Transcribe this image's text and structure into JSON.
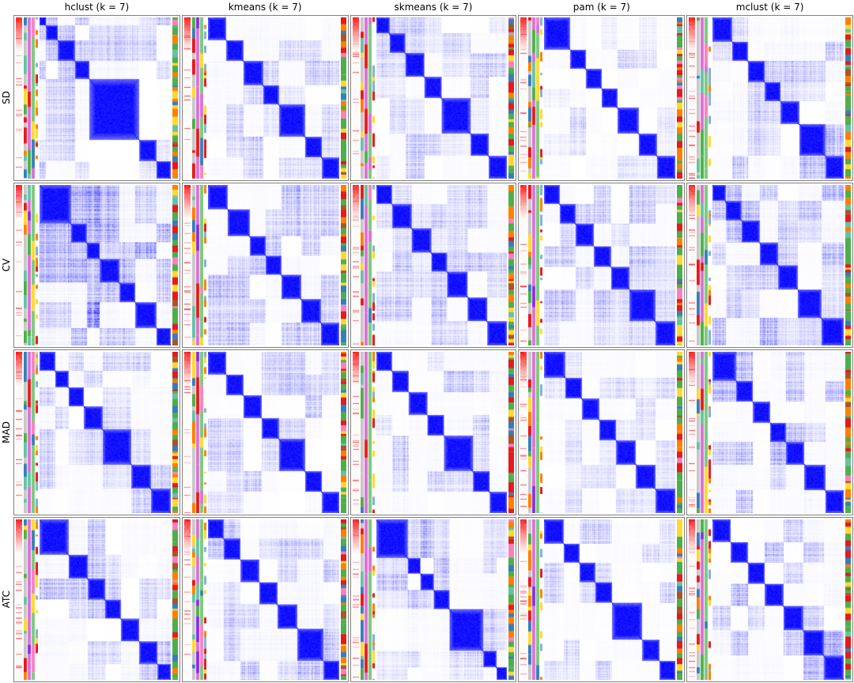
{
  "figure": {
    "k": 7,
    "row_labels": [
      "SD",
      "CV",
      "MAD",
      "ATC"
    ],
    "column_titles": [
      "hclust (k = 7)",
      "kmeans (k = 7)",
      "skmeans (k = 7)",
      "pam (k = 7)",
      "mclust (k = 7)"
    ]
  },
  "colors": {
    "heat_high": "#0000FF",
    "heat_low": "#FFFFFF",
    "score_high": "#FF0000",
    "panel_border": "#7F7F7F",
    "class_strips": [
      {
        "base": "#C8C8C8",
        "base_p": 0.4,
        "palette": [
          "#C8C8C8",
          "#E41A1C",
          "#377EB8",
          "#4DAF4A",
          "#FF7F00",
          "#FFD92F",
          "#66C2A5"
        ],
        "min_seg": 0.015,
        "max_seg": 0.1
      },
      {
        "base": "#DA70D6",
        "base_p": 0.72,
        "palette": [
          "#8A2BE2",
          "#66C2A5",
          "#E41A1C",
          "#4DAF4A"
        ],
        "min_seg": 0.03,
        "max_seg": 0.18
      },
      {
        "base": "#7CC87C",
        "base_p": 0.75,
        "palette": [
          "#DA70D6",
          "#FFD92F",
          "#377EB8",
          "#F781BF"
        ],
        "min_seg": 0.03,
        "max_seg": 0.18
      },
      {
        "base": "#FFFFFF",
        "base_p": 0.55,
        "palette": [
          "#FFD92F",
          "#FF7F00",
          "#E41A1C",
          "#80B1D3"
        ],
        "min_seg": 0.01,
        "max_seg": 0.06
      }
    ],
    "right_strip": {
      "palette": [
        "#4DAF4A",
        "#E41A1C",
        "#FF7F00",
        "#377EB8",
        "#FFD92F",
        "#F781BF",
        "#A65628",
        "#66C2A5"
      ],
      "weights": [
        0.3,
        0.2,
        0.14,
        0.1,
        0.1,
        0.06,
        0.05,
        0.05
      ],
      "min_seg": 0.008,
      "max_seg": 0.05
    }
  },
  "chart_data": {
    "type": "heatmap",
    "subtype": "consensus-clustering-matrix-grid",
    "k": 7,
    "rows": [
      "SD",
      "CV",
      "MAD",
      "ATC"
    ],
    "columns": [
      "hclust",
      "kmeans",
      "skmeans",
      "pam",
      "mclust"
    ],
    "value_range": [
      0,
      1
    ],
    "colormap": {
      "low": "#FFFFFF",
      "high": "#0000FF"
    },
    "panels": [
      {
        "row": "SD",
        "col": "hclust",
        "blocks": [
          0.05,
          0.09,
          0.13,
          0.11,
          0.38,
          0.13,
          0.11
        ],
        "noise": 0.3,
        "seed": 101
      },
      {
        "row": "SD",
        "col": "kmeans",
        "blocks": [
          0.14,
          0.13,
          0.15,
          0.12,
          0.2,
          0.13,
          0.13
        ],
        "noise": 0.25,
        "seed": 102
      },
      {
        "row": "SD",
        "col": "skmeans",
        "blocks": [
          0.1,
          0.12,
          0.15,
          0.13,
          0.22,
          0.14,
          0.14
        ],
        "noise": 0.22,
        "seed": 103
      },
      {
        "row": "SD",
        "col": "pam",
        "blocks": [
          0.2,
          0.12,
          0.12,
          0.12,
          0.16,
          0.14,
          0.14
        ],
        "noise": 0.18,
        "seed": 104
      },
      {
        "row": "SD",
        "col": "mclust",
        "blocks": [
          0.15,
          0.12,
          0.13,
          0.12,
          0.14,
          0.2,
          0.14
        ],
        "noise": 0.28,
        "seed": 105
      },
      {
        "row": "CV",
        "col": "hclust",
        "blocks": [
          0.24,
          0.12,
          0.1,
          0.15,
          0.12,
          0.16,
          0.11
        ],
        "noise": 0.45,
        "seed": 106
      },
      {
        "row": "CV",
        "col": "kmeans",
        "blocks": [
          0.15,
          0.17,
          0.12,
          0.12,
          0.15,
          0.15,
          0.14
        ],
        "noise": 0.3,
        "seed": 107
      },
      {
        "row": "CV",
        "col": "skmeans",
        "blocks": [
          0.12,
          0.15,
          0.15,
          0.12,
          0.16,
          0.15,
          0.15
        ],
        "noise": 0.25,
        "seed": 108
      },
      {
        "row": "CV",
        "col": "pam",
        "blocks": [
          0.12,
          0.12,
          0.14,
          0.13,
          0.14,
          0.2,
          0.15
        ],
        "noise": 0.3,
        "seed": 109
      },
      {
        "row": "CV",
        "col": "mclust",
        "blocks": [
          0.1,
          0.12,
          0.14,
          0.14,
          0.15,
          0.18,
          0.17
        ],
        "noise": 0.3,
        "seed": 110
      },
      {
        "row": "MAD",
        "col": "hclust",
        "blocks": [
          0.12,
          0.1,
          0.12,
          0.14,
          0.22,
          0.15,
          0.15
        ],
        "noise": 0.28,
        "seed": 111
      },
      {
        "row": "MAD",
        "col": "kmeans",
        "blocks": [
          0.14,
          0.13,
          0.14,
          0.13,
          0.2,
          0.13,
          0.13
        ],
        "noise": 0.24,
        "seed": 112
      },
      {
        "row": "MAD",
        "col": "skmeans",
        "blocks": [
          0.12,
          0.13,
          0.14,
          0.13,
          0.22,
          0.13,
          0.13
        ],
        "noise": 0.26,
        "seed": 113
      },
      {
        "row": "MAD",
        "col": "pam",
        "blocks": [
          0.16,
          0.13,
          0.13,
          0.13,
          0.15,
          0.15,
          0.15
        ],
        "noise": 0.18,
        "seed": 114
      },
      {
        "row": "MAD",
        "col": "mclust",
        "blocks": [
          0.18,
          0.13,
          0.13,
          0.12,
          0.14,
          0.16,
          0.14
        ],
        "noise": 0.3,
        "seed": 115
      },
      {
        "row": "ATC",
        "col": "hclust",
        "blocks": [
          0.22,
          0.15,
          0.13,
          0.12,
          0.14,
          0.14,
          0.1
        ],
        "noise": 0.32,
        "seed": 116
      },
      {
        "row": "ATC",
        "col": "kmeans",
        "blocks": [
          0.12,
          0.13,
          0.14,
          0.14,
          0.15,
          0.2,
          0.12
        ],
        "noise": 0.3,
        "seed": 117
      },
      {
        "row": "ATC",
        "col": "skmeans",
        "blocks": [
          0.24,
          0.1,
          0.1,
          0.12,
          0.26,
          0.1,
          0.08
        ],
        "noise": 0.3,
        "seed": 118
      },
      {
        "row": "ATC",
        "col": "pam",
        "blocks": [
          0.15,
          0.12,
          0.12,
          0.13,
          0.23,
          0.13,
          0.12
        ],
        "noise": 0.2,
        "seed": 119
      },
      {
        "row": "ATC",
        "col": "mclust",
        "blocks": [
          0.14,
          0.13,
          0.13,
          0.14,
          0.15,
          0.16,
          0.15
        ],
        "noise": 0.33,
        "seed": 120
      }
    ]
  }
}
